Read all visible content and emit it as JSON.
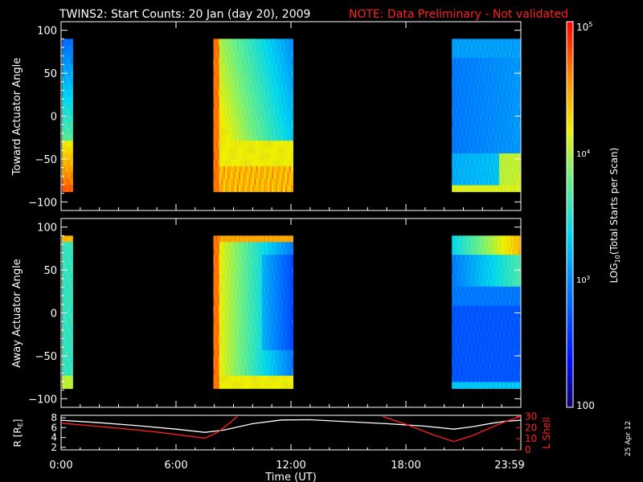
{
  "title": {
    "main": "TWINS2: Start Counts: 20 Jan (day  20), 2009",
    "note": "NOTE: Data Preliminary - Not validated"
  },
  "date_stamp": "25 Apr 12",
  "colors": {
    "background": "#000000",
    "note": "#ff2020",
    "frame": "#ffffff",
    "l_shell": "#ff2020",
    "r_trace": "#ffffff"
  },
  "chart_data": [
    {
      "type": "heatmap",
      "panel": "toward",
      "ylabel": "Toward Actuator Angle",
      "ylim": [
        -110,
        110
      ],
      "yticks": [
        -100,
        -50,
        0,
        50,
        100
      ],
      "xlim_hours": [
        0,
        24
      ],
      "angle_range": [
        -88,
        90
      ],
      "segments_hours": [
        [
          0.05,
          0.6
        ],
        [
          7.95,
          12.1
        ],
        [
          20.4,
          23.95
        ]
      ]
    },
    {
      "type": "heatmap",
      "panel": "away",
      "ylabel": "Away Actuator Angle",
      "ylim": [
        -110,
        110
      ],
      "yticks": [
        -100,
        -50,
        0,
        50,
        100
      ],
      "xlim_hours": [
        0,
        24
      ],
      "angle_range": [
        -88,
        90
      ],
      "segments_hours": [
        [
          0.05,
          0.6
        ],
        [
          7.95,
          12.1
        ],
        [
          20.4,
          23.95
        ]
      ]
    },
    {
      "type": "line",
      "panel": "orbit",
      "xlabel": "Time (UT)",
      "xticks": [
        "0:00",
        "6:00",
        "12:00",
        "18:00",
        "23:59"
      ],
      "xtick_hours": [
        0,
        6,
        12,
        18,
        24
      ],
      "left_axis": {
        "label": "R [R",
        "label_sub": "E",
        "label_end": "]",
        "ylim": [
          1.5,
          8.5
        ],
        "ticks": [
          2,
          4,
          6,
          8
        ]
      },
      "right_axis": {
        "label": "L Shell",
        "ylim": [
          0,
          31
        ],
        "ticks": [
          0,
          10,
          20,
          30
        ]
      },
      "series": [
        {
          "axis": "left",
          "x": [
            0,
            2,
            4,
            6,
            7.5,
            8.5,
            10,
            11.5,
            13,
            15,
            17,
            19,
            20.5,
            21.5,
            22.5,
            23.2,
            24
          ],
          "y": [
            7.5,
            7.0,
            6.4,
            5.7,
            5.05,
            5.5,
            6.8,
            7.55,
            7.6,
            7.2,
            6.8,
            6.3,
            5.7,
            6.2,
            6.9,
            7.3,
            7.5
          ]
        },
        {
          "axis": "right",
          "x": [
            0,
            1,
            3,
            5,
            7.5,
            8.2,
            8.8,
            9.2
          ],
          "y": [
            24,
            22.5,
            19.5,
            16,
            10.5,
            16,
            24,
            30
          ]
        },
        {
          "axis": "right",
          "x": [
            16.8,
            18,
            19.5,
            20.5,
            21.5,
            22.5,
            23.3,
            24
          ],
          "y": [
            30,
            23,
            13,
            7.5,
            13,
            20.5,
            26,
            30
          ]
        }
      ]
    }
  ],
  "colorbar": {
    "label": "LOG",
    "label_sub": "10",
    "label_end": "(Total Starts per Scan)",
    "top_prefix": "10",
    "top_exp": "5",
    "mid_prefix": "10",
    "mid_exp": "4",
    "low_prefix": "10",
    "low_exp": "3",
    "bottom": "100",
    "range_log": [
      2,
      5
    ]
  }
}
